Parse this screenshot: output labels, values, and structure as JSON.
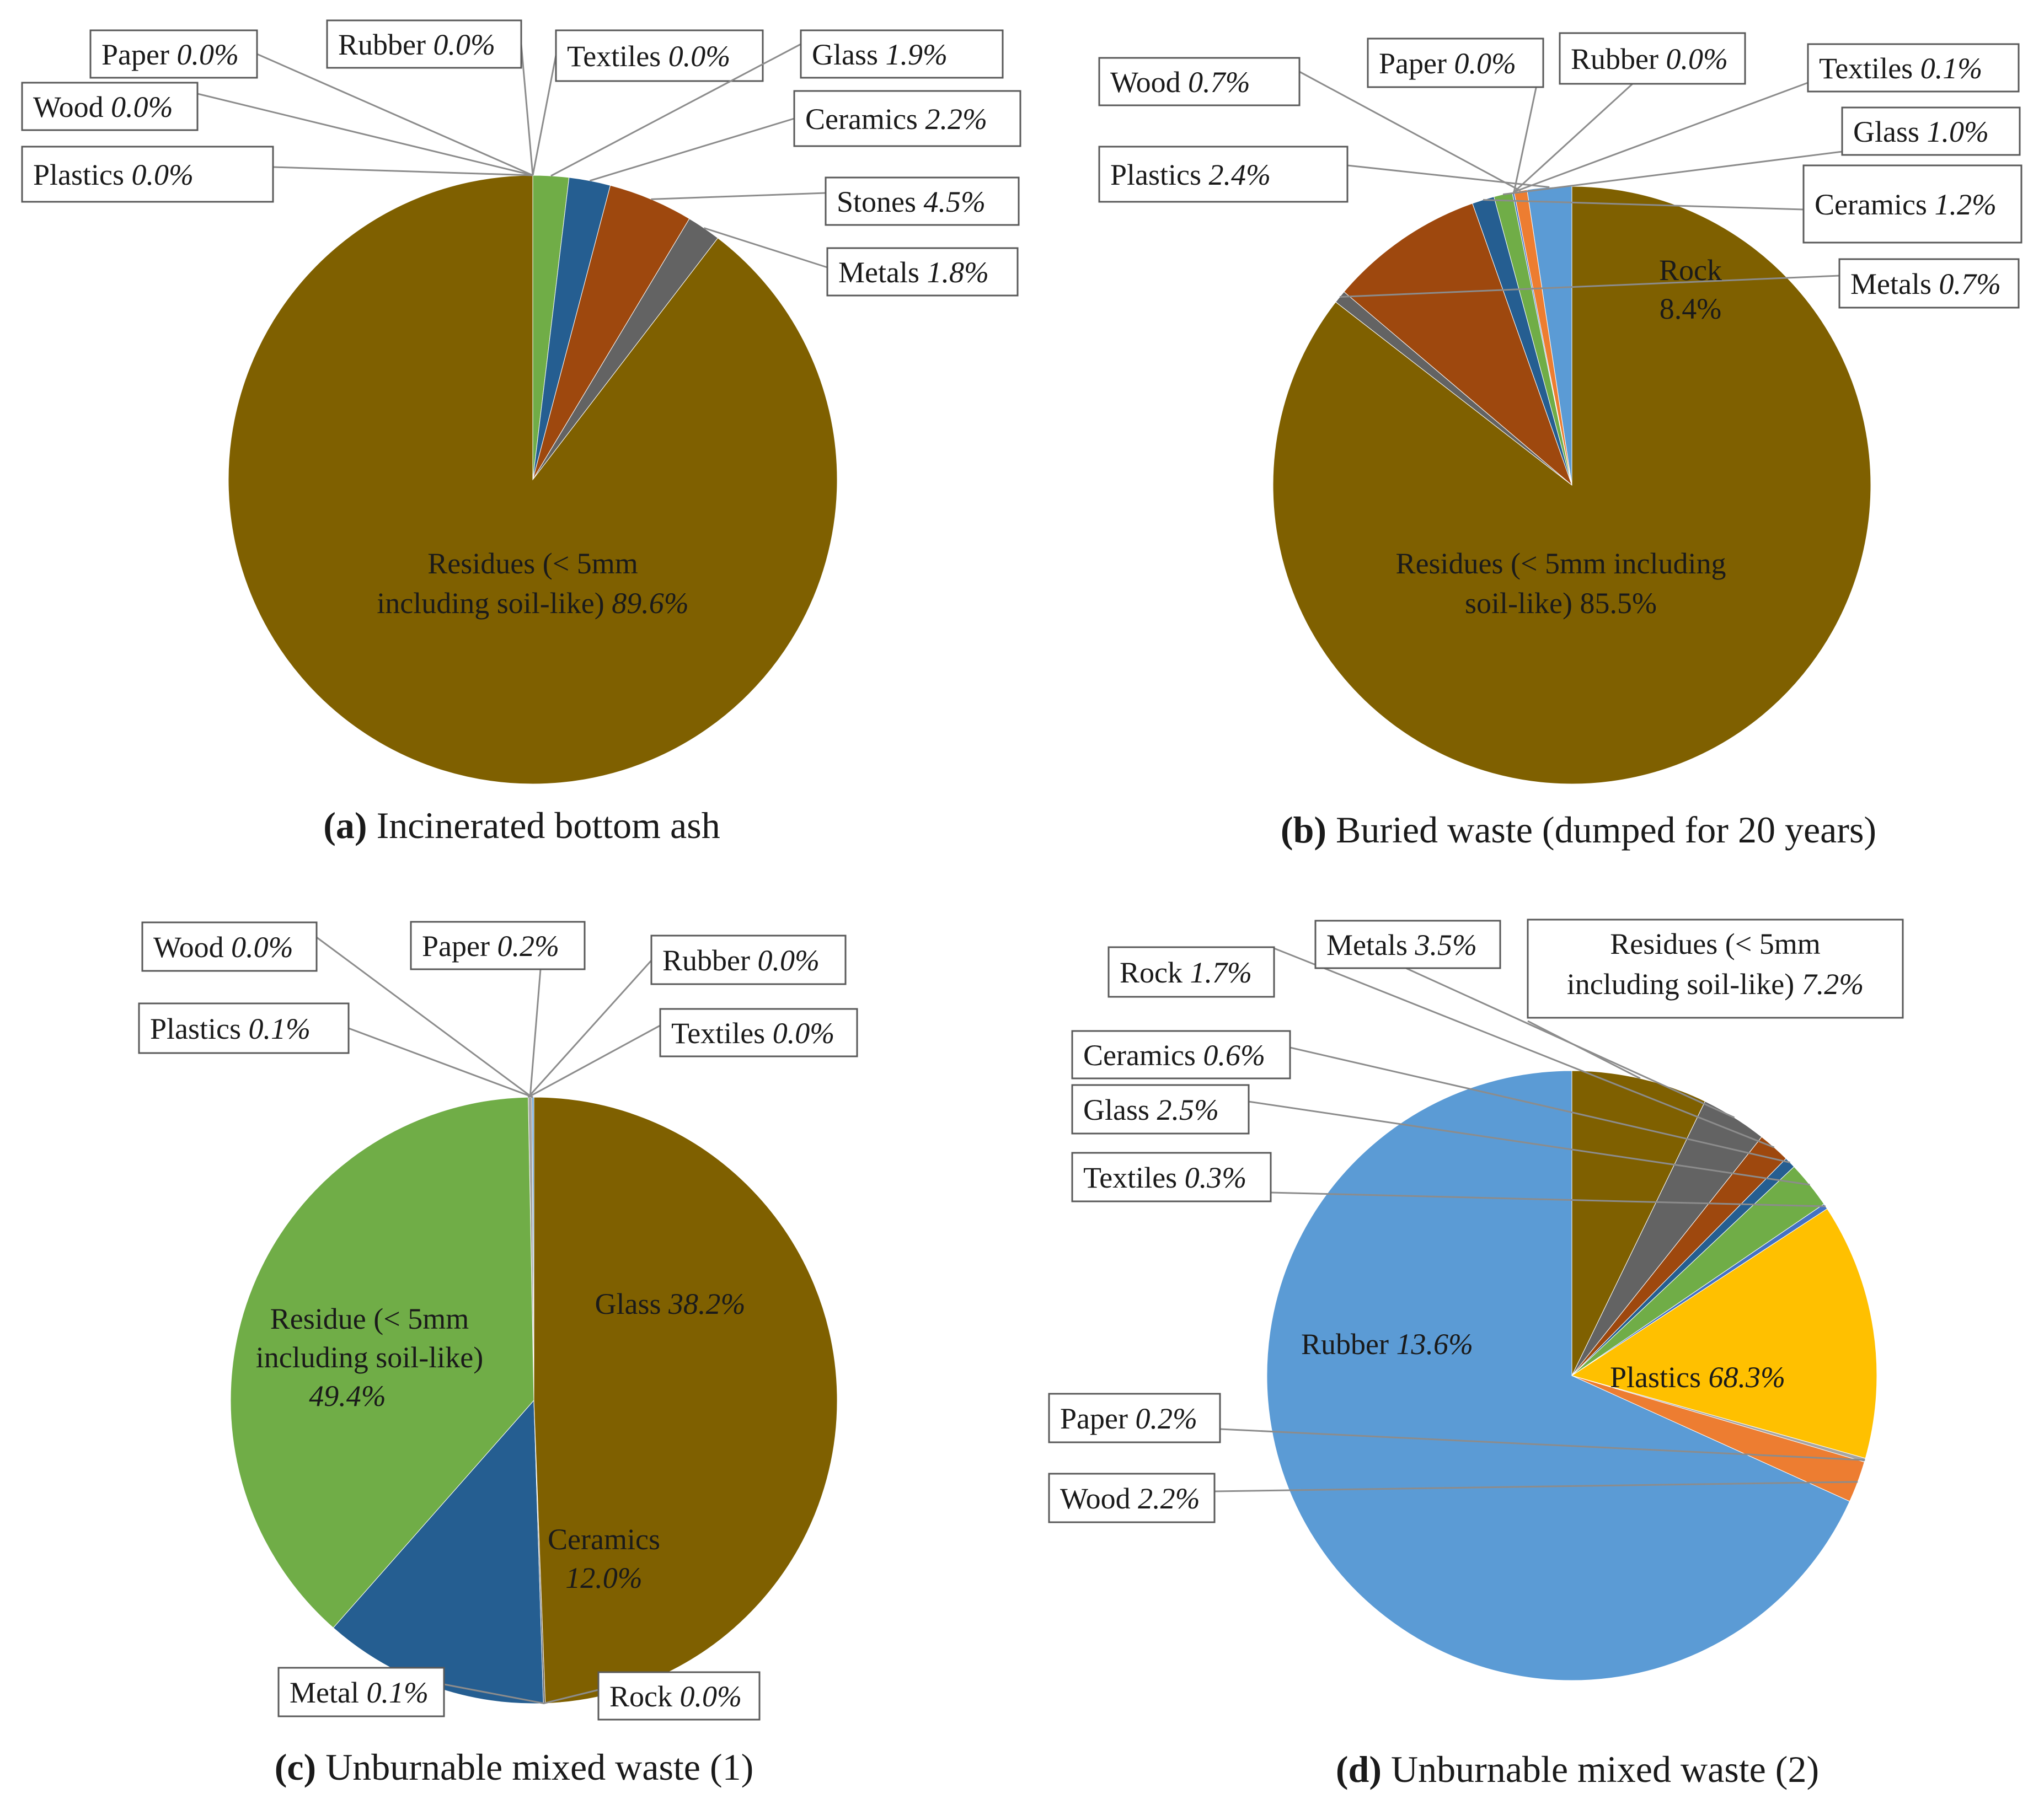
{
  "chart_data": [
    {
      "type": "pie",
      "caption_letter": "(a)",
      "caption_text": "Incinerated bottom ash",
      "slices": [
        {
          "name": "Glass",
          "pct": "1.9%",
          "value": 1.9,
          "color": "#70ad47"
        },
        {
          "name": "Ceramics",
          "pct": "2.2%",
          "value": 2.2,
          "color": "#255e91"
        },
        {
          "name": "Stones",
          "pct": "4.5%",
          "value": 4.5,
          "color": "#9e480e"
        },
        {
          "name": "Metals",
          "pct": "1.8%",
          "value": 1.8,
          "color": "#636363"
        },
        {
          "name": "Residues (< 5mm including soil-like)",
          "line1": "Residues (< 5mm",
          "line2": "including soil-like)",
          "pct": "89.6%",
          "value": 89.6,
          "color": "#7f6000"
        },
        {
          "name": "Plastics",
          "pct": "0.0%",
          "value": 0.0,
          "color": "#5b9bd5"
        },
        {
          "name": "Wood",
          "pct": "0.0%",
          "value": 0.0,
          "color": "#ed7d31"
        },
        {
          "name": "Paper",
          "pct": "0.0%",
          "value": 0.0,
          "color": "#a5a5a5"
        },
        {
          "name": "Rubber",
          "pct": "0.0%",
          "value": 0.0,
          "color": "#ffc000"
        },
        {
          "name": "Textiles",
          "pct": "0.0%",
          "value": 0.0,
          "color": "#4472c4"
        }
      ]
    },
    {
      "type": "pie",
      "caption_letter": "(b)",
      "caption_text": "Buried waste (dumped for 20 years)",
      "slices": [
        {
          "name": "Plastics",
          "pct": "2.4%",
          "value": 2.4,
          "color": "#5b9bd5"
        },
        {
          "name": "Wood",
          "pct": "0.7%",
          "value": 0.7,
          "color": "#ed7d31"
        },
        {
          "name": "Paper",
          "pct": "0.0%",
          "value": 0.0,
          "color": "#a5a5a5"
        },
        {
          "name": "Rubber",
          "pct": "0.0%",
          "value": 0.0,
          "color": "#ffc000"
        },
        {
          "name": "Textiles",
          "pct": "0.1%",
          "value": 0.1,
          "color": "#4472c4"
        },
        {
          "name": "Glass",
          "pct": "1.0%",
          "value": 1.0,
          "color": "#70ad47"
        },
        {
          "name": "Ceramics",
          "pct": "1.2%",
          "value": 1.2,
          "color": "#255e91"
        },
        {
          "name": "Rock",
          "pct": "8.4%",
          "value": 8.4,
          "color": "#9e480e"
        },
        {
          "name": "Metals",
          "pct": "0.7%",
          "value": 0.7,
          "color": "#636363"
        },
        {
          "name": "Residues (< 5mm including soil-like)",
          "line1": "Residues (< 5mm including",
          "line2": "soil-like)",
          "pct": "85.5%",
          "value": 85.5,
          "color": "#7f6000"
        }
      ]
    },
    {
      "type": "pie",
      "caption_letter": "(c)",
      "caption_text": "Unburnable mixed waste (1)",
      "slices": [
        {
          "name": "Plastics",
          "pct": "0.1%",
          "value": 0.1,
          "color": "#5b9bd5"
        },
        {
          "name": "Wood",
          "pct": "0.0%",
          "value": 0.0,
          "color": "#ed7d31"
        },
        {
          "name": "Paper",
          "pct": "0.2%",
          "value": 0.2,
          "color": "#a5a5a5"
        },
        {
          "name": "Rubber",
          "pct": "0.0%",
          "value": 0.0,
          "color": "#ffc000"
        },
        {
          "name": "Textiles",
          "pct": "0.0%",
          "value": 0.0,
          "color": "#4472c4"
        },
        {
          "name": "Glass",
          "pct": "38.2%",
          "value": 38.2,
          "color": "#70ad47"
        },
        {
          "name": "Ceramics",
          "pct": "12.0%",
          "value": 12.0,
          "color": "#255e91"
        },
        {
          "name": "Rock",
          "pct": "0.0%",
          "value": 0.0,
          "color": "#9e480e"
        },
        {
          "name": "Metal",
          "pct": "0.1%",
          "value": 0.1,
          "color": "#636363"
        },
        {
          "name": "Residue (< 5mm including soil-like)",
          "line1": "Residue (< 5mm",
          "line2": "including soil-like)",
          "pct": "49.4%",
          "value": 49.4,
          "color": "#7f6000"
        }
      ]
    },
    {
      "type": "pie",
      "caption_letter": "(d)",
      "caption_text": "Unburnable mixed waste (2)",
      "slices": [
        {
          "name": "Plastics",
          "pct": "68.3%",
          "value": 68.3,
          "color": "#5b9bd5"
        },
        {
          "name": "Wood",
          "pct": "2.2%",
          "value": 2.2,
          "color": "#ed7d31"
        },
        {
          "name": "Paper",
          "pct": "0.2%",
          "value": 0.2,
          "color": "#a5a5a5"
        },
        {
          "name": "Rubber",
          "pct": "13.6%",
          "value": 13.6,
          "color": "#ffc000"
        },
        {
          "name": "Textiles",
          "pct": "0.3%",
          "value": 0.3,
          "color": "#4472c4"
        },
        {
          "name": "Glass",
          "pct": "2.5%",
          "value": 2.5,
          "color": "#70ad47"
        },
        {
          "name": "Ceramics",
          "pct": "0.6%",
          "value": 0.6,
          "color": "#255e91"
        },
        {
          "name": "Rock",
          "pct": "1.7%",
          "value": 1.7,
          "color": "#9e480e"
        },
        {
          "name": "Metals",
          "pct": "3.5%",
          "value": 3.5,
          "color": "#636363"
        },
        {
          "name": "Residues (< 5mm including soil-like)",
          "line1": "Residues (< 5mm",
          "line2": "including soil-like)",
          "pct": "7.2%",
          "value": 7.2,
          "color": "#7f6000"
        }
      ]
    }
  ]
}
